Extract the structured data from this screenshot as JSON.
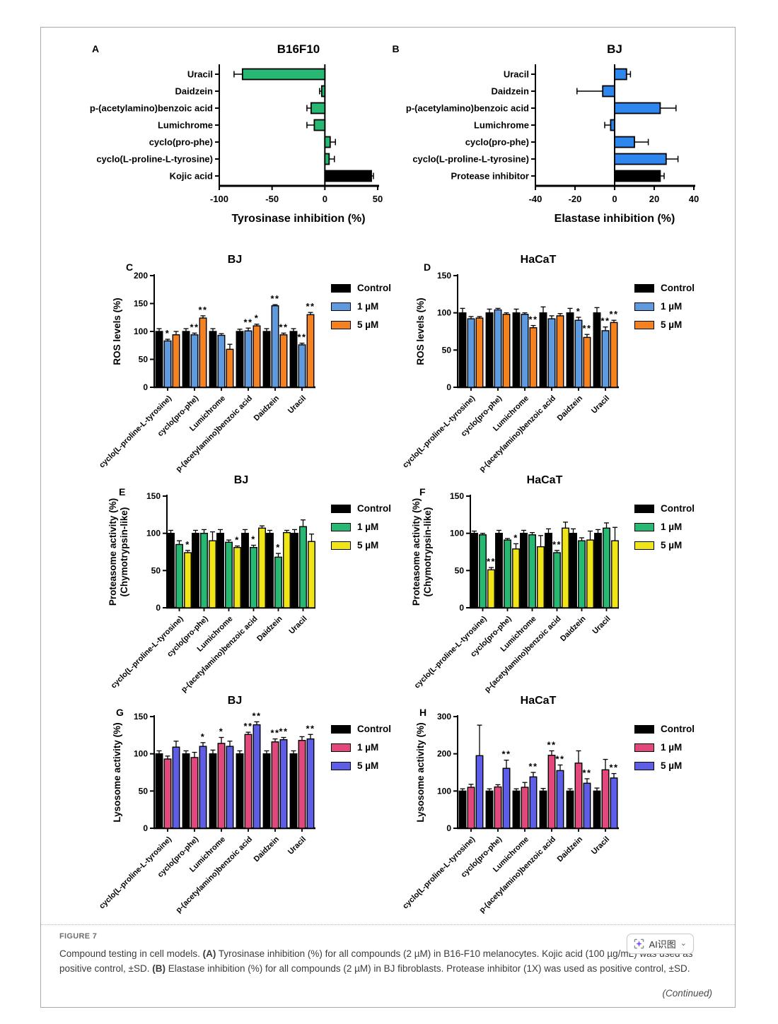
{
  "page": {
    "figure_label": "FIGURE 7",
    "caption_segments": [
      {
        "text": "Compound testing in cell models. ",
        "bold": false
      },
      {
        "text": "(A)",
        "bold": true
      },
      {
        "text": " Tyrosinase inhibition (%) for all compounds (2 µM) in B16-F10 melanocytes. Kojic acid (100 µg/mL) was used as positive control, ±SD. ",
        "bold": false
      },
      {
        "text": "(B)",
        "bold": true
      },
      {
        "text": " Elastase inhibition (%) for all compounds (2 µM) in BJ fibroblasts. Protease inhibitor (1X) was used as positive control, ±SD.",
        "bold": false
      }
    ],
    "continued": "(Continued)",
    "ai_button": {
      "label": "AI识图",
      "chevron": "⌄"
    }
  },
  "colors": {
    "black": "#000000",
    "green": "#27b873",
    "blue": "#2d87ee",
    "lightblue": "#5e9ae0",
    "orange": "#f5821f",
    "yellow": "#f0e518",
    "pink": "#e2487d",
    "purple": "#5e5de8"
  },
  "chart_data": [
    {
      "id": "A",
      "letter": "A",
      "type": "bar-horizontal",
      "title": "B16F10",
      "xlabel": "Tyrosinase inhibition (%)",
      "xlim": [
        -100,
        50
      ],
      "xticks": [
        -100,
        -50,
        0,
        50
      ],
      "categories": [
        "Uracil",
        "Daidzein",
        "p-(acetylamino)benzoic acid",
        "Lumichrome",
        "cyclo(pro-phe)",
        "cyclo(L-proline-L-tyrosine)",
        "Kojic acid"
      ],
      "values": [
        -78,
        -3,
        -13,
        -10,
        5,
        4,
        44
      ],
      "errors": [
        8,
        2,
        4,
        7,
        5,
        5,
        2
      ],
      "bar_colors": [
        "green",
        "green",
        "green",
        "green",
        "green",
        "green",
        "black"
      ]
    },
    {
      "id": "B",
      "letter": "B",
      "type": "bar-horizontal",
      "title": "BJ",
      "xlabel": "Elastase inhibition (%)",
      "xlim": [
        -40,
        40
      ],
      "xticks": [
        -40,
        -20,
        0,
        20,
        40
      ],
      "categories": [
        "Uracil",
        "Daidzein",
        "p-(acetylamino)benzoic acid",
        "Lumichrome",
        "cyclo(pro-phe)",
        "cyclo(L-proline-L-tyrosine)",
        "Protease inhibitor"
      ],
      "values": [
        6,
        -6,
        23,
        -2,
        10,
        26,
        23
      ],
      "errors": [
        2,
        13,
        8,
        3,
        7,
        6,
        2
      ],
      "bar_colors": [
        "blue",
        "blue",
        "blue",
        "blue",
        "blue",
        "blue",
        "black"
      ]
    },
    {
      "id": "C",
      "letter": "C",
      "type": "bar-grouped",
      "title": "BJ",
      "ylabel": "ROS levels (%)",
      "ylim": [
        0,
        200
      ],
      "yticks": [
        0,
        50,
        100,
        150,
        200
      ],
      "categories": [
        "cyclo(L-proline-L-tyrosine)",
        "cyclo(pro-phe)",
        "Lumichrome",
        "p-(acetylamino)benzoic acid",
        "Daidzein",
        "Uracil"
      ],
      "series": [
        {
          "name": "Control",
          "color": "black",
          "values": [
            100,
            100,
            100,
            100,
            100,
            100
          ],
          "errors": [
            5,
            5,
            5,
            4,
            5,
            5
          ],
          "sig": [
            "",
            "",
            "",
            "",
            "",
            ""
          ]
        },
        {
          "name": "1 µM",
          "color": "lightblue",
          "values": [
            83,
            94,
            93,
            101,
            146,
            76
          ],
          "errors": [
            3,
            3,
            3,
            5,
            2,
            3
          ],
          "sig": [
            "*",
            "**",
            "",
            "**",
            "**",
            "**"
          ]
        },
        {
          "name": "5 µM",
          "color": "orange",
          "values": [
            94,
            124,
            68,
            110,
            94,
            130
          ],
          "errors": [
            6,
            4,
            9,
            3,
            3,
            4
          ],
          "sig": [
            "",
            "**",
            "",
            "*",
            "**",
            "**"
          ]
        }
      ]
    },
    {
      "id": "D",
      "letter": "D",
      "type": "bar-grouped",
      "title": "HaCaT",
      "ylabel": "ROS levels (%)",
      "ylim": [
        0,
        150
      ],
      "yticks": [
        0,
        50,
        100,
        150
      ],
      "categories": [
        "cyclo(L-proline-L-tyrosine)",
        "cyclo(pro-phe)",
        "Lumichrome",
        "p-(acetylamino)benzoic acid",
        "Daidzein",
        "Uracil"
      ],
      "series": [
        {
          "name": "Control",
          "color": "black",
          "values": [
            100,
            100,
            100,
            100,
            100,
            100
          ],
          "errors": [
            6,
            5,
            5,
            8,
            6,
            7
          ],
          "sig": [
            "",
            "",
            "",
            "",
            "",
            ""
          ]
        },
        {
          "name": "1 µM",
          "color": "lightblue",
          "values": [
            92,
            104,
            98,
            92,
            90,
            76
          ],
          "errors": [
            3,
            2,
            2,
            4,
            4,
            5
          ],
          "sig": [
            "",
            "",
            "",
            "",
            "*",
            "**"
          ]
        },
        {
          "name": "5 µM",
          "color": "orange",
          "values": [
            93,
            98,
            80,
            96,
            67,
            87
          ],
          "errors": [
            2,
            2,
            3,
            3,
            4,
            3
          ],
          "sig": [
            "",
            "",
            "**",
            "",
            "**",
            "**"
          ]
        }
      ]
    },
    {
      "id": "E",
      "letter": "E",
      "type": "bar-grouped",
      "title": "BJ",
      "ylabel_lines": [
        "Proteasome activity (%)",
        "(Chymotrypsin-like)"
      ],
      "ylim": [
        0,
        150
      ],
      "yticks": [
        0,
        50,
        100,
        150
      ],
      "categories": [
        "cyclo(L-proline-L-tyrosine)",
        "cyclo(pro-phe)",
        "Lumichrome",
        "p-(acetylamino)benzoic acid",
        "Daidzein",
        "Uracil"
      ],
      "series": [
        {
          "name": "Control",
          "color": "black",
          "values": [
            100,
            100,
            100,
            100,
            100,
            100
          ],
          "errors": [
            4,
            4,
            5,
            5,
            4,
            5
          ],
          "sig": [
            "",
            "",
            "",
            "",
            "",
            ""
          ]
        },
        {
          "name": "1 µM",
          "color": "green",
          "values": [
            85,
            100,
            88,
            81,
            68,
            109
          ],
          "errors": [
            5,
            5,
            3,
            3,
            5,
            9
          ],
          "sig": [
            "",
            "",
            "",
            "*",
            "*",
            ""
          ]
        },
        {
          "name": "5 µM",
          "color": "yellow",
          "values": [
            74,
            90,
            81,
            107,
            101,
            89
          ],
          "errors": [
            3,
            12,
            2,
            3,
            3,
            10
          ],
          "sig": [
            "*",
            "",
            "*",
            "",
            "",
            ""
          ]
        }
      ]
    },
    {
      "id": "F",
      "letter": "F",
      "type": "bar-grouped",
      "title": "HaCaT",
      "ylabel_lines": [
        "Proteasome activity (%)",
        "(Chymotrypsin-like)"
      ],
      "ylim": [
        0,
        150
      ],
      "yticks": [
        0,
        50,
        100,
        150
      ],
      "categories": [
        "cyclo(L-proline-L-tyrosine)",
        "cyclo(pro-phe)",
        "Lumichrome",
        "p-(acetylamino)benzoic acid",
        "Daidzein",
        "Uracil"
      ],
      "series": [
        {
          "name": "Control",
          "color": "black",
          "values": [
            100,
            100,
            100,
            100,
            100,
            100
          ],
          "errors": [
            3,
            4,
            4,
            6,
            6,
            5
          ],
          "sig": [
            "",
            "",
            "",
            "",
            "",
            ""
          ]
        },
        {
          "name": "1 µM",
          "color": "green",
          "values": [
            98,
            91,
            98,
            74,
            90,
            107
          ],
          "errors": [
            2,
            2,
            3,
            3,
            4,
            7
          ],
          "sig": [
            "",
            "",
            "",
            "**",
            "",
            ""
          ]
        },
        {
          "name": "5 µM",
          "color": "yellow",
          "values": [
            51,
            79,
            82,
            107,
            91,
            90
          ],
          "errors": [
            3,
            7,
            15,
            8,
            12,
            18
          ],
          "sig": [
            "**",
            "*",
            "",
            "",
            "",
            ""
          ]
        }
      ]
    },
    {
      "id": "G",
      "letter": "G",
      "type": "bar-grouped",
      "title": "BJ",
      "ylabel": "Lysosome activity (%)",
      "ylim": [
        0,
        150
      ],
      "yticks": [
        0,
        50,
        100,
        150
      ],
      "categories": [
        "cyclo(L-proline-L-tyrosine)",
        "cyclo(pro-phe)",
        "Lumichrome",
        "p-(acetylamino)benzoic acid",
        "Daidzein",
        "Uracil"
      ],
      "series": [
        {
          "name": "Control",
          "color": "black",
          "values": [
            100,
            100,
            100,
            100,
            100,
            100
          ],
          "errors": [
            4,
            4,
            5,
            4,
            4,
            4
          ],
          "sig": [
            "",
            "",
            "",
            "",
            "",
            ""
          ]
        },
        {
          "name": "1 µM",
          "color": "pink",
          "values": [
            93,
            95,
            114,
            126,
            116,
            118
          ],
          "errors": [
            4,
            7,
            8,
            3,
            4,
            5
          ],
          "sig": [
            "",
            "",
            "*",
            "**",
            "**",
            ""
          ]
        },
        {
          "name": "5 µM",
          "color": "purple",
          "values": [
            109,
            110,
            110,
            139,
            119,
            120
          ],
          "errors": [
            8,
            5,
            7,
            4,
            3,
            6
          ],
          "sig": [
            "",
            "*",
            "",
            "**",
            "**",
            "**"
          ]
        }
      ]
    },
    {
      "id": "H",
      "letter": "H",
      "type": "bar-grouped",
      "title": "HaCaT",
      "ylabel": "Lysosome activity (%)",
      "ylim": [
        0,
        300
      ],
      "yticks": [
        0,
        100,
        200,
        300
      ],
      "categories": [
        "cyclo(L-proline-L-tyrosine)",
        "cyclo(pro-phe)",
        "Lumichrome",
        "p-(acetylamino)benzoic acid",
        "Daidzein",
        "Uracil"
      ],
      "series": [
        {
          "name": "Control",
          "color": "black",
          "values": [
            100,
            100,
            100,
            100,
            100,
            100
          ],
          "errors": [
            6,
            6,
            6,
            7,
            6,
            8
          ],
          "sig": [
            "",
            "",
            "",
            "",
            "",
            ""
          ]
        },
        {
          "name": "1 µM",
          "color": "pink",
          "values": [
            110,
            111,
            110,
            196,
            175,
            157
          ],
          "errors": [
            8,
            6,
            13,
            12,
            33,
            28
          ],
          "sig": [
            "",
            "",
            "",
            "**",
            "",
            ""
          ]
        },
        {
          "name": "5 µM",
          "color": "purple",
          "values": [
            195,
            161,
            138,
            155,
            121,
            135
          ],
          "errors": [
            82,
            22,
            12,
            15,
            12,
            12
          ],
          "sig": [
            "",
            "**",
            "**",
            "**",
            "**",
            "**"
          ]
        }
      ]
    }
  ]
}
